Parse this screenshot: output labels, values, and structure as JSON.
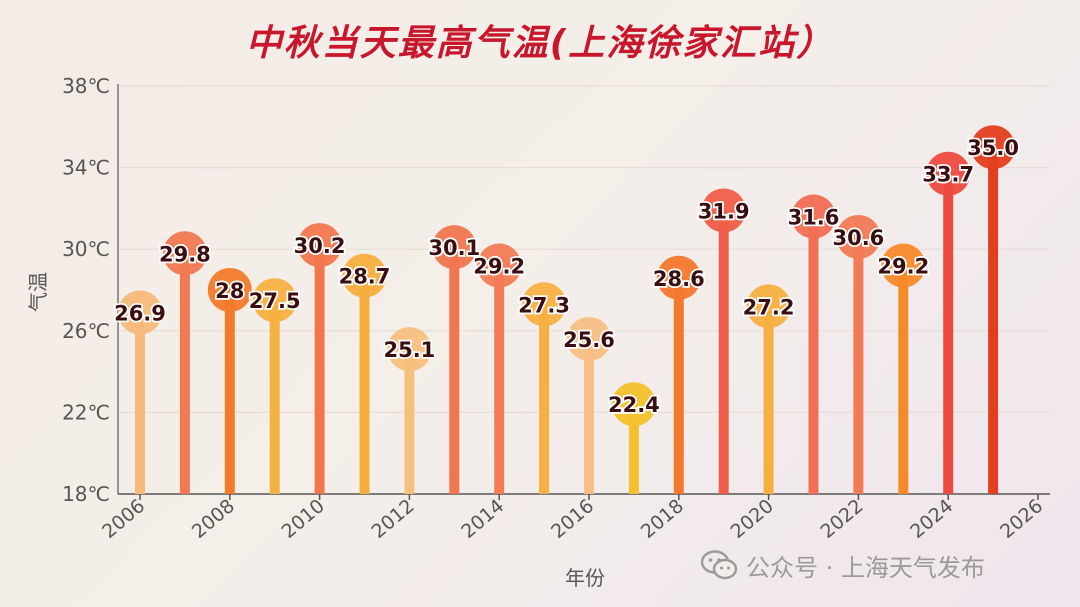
{
  "chart_data": {
    "type": "lollipop",
    "title": "中秋当天最高气温(上海徐家汇站）",
    "xlabel": "年份",
    "ylabel": "气温",
    "x": [
      2006,
      2007,
      2008,
      2009,
      2010,
      2011,
      2012,
      2013,
      2014,
      2015,
      2016,
      2017,
      2018,
      2019,
      2020,
      2021,
      2022,
      2023,
      2024,
      2025
    ],
    "values": [
      26.9,
      29.8,
      28,
      27.5,
      30.2,
      28.7,
      25.1,
      30.1,
      29.2,
      27.3,
      25.6,
      22.4,
      28.6,
      31.9,
      27.2,
      31.6,
      30.6,
      29.2,
      33.7,
      35.0
    ],
    "value_labels": [
      "26.9",
      "29.8",
      "28",
      "27.5",
      "30.2",
      "28.7",
      "25.1",
      "30.1",
      "29.2",
      "27.3",
      "25.6",
      "22.4",
      "28.6",
      "31.9",
      "27.2",
      "31.6",
      "30.6",
      "29.2",
      "33.7",
      "35.0"
    ],
    "colors": [
      "#f7b97a",
      "#f07a52",
      "#f27a2a",
      "#f5b042",
      "#f2764c",
      "#f5ad3e",
      "#f7bf7e",
      "#f07650",
      "#f27a55",
      "#f5b042",
      "#f7bf85",
      "#f4c12c",
      "#f3782e",
      "#ef5e48",
      "#f5b042",
      "#f26e55",
      "#f27a55",
      "#f58a2b",
      "#ee4a40",
      "#e1401f"
    ],
    "ylim": [
      18,
      38
    ],
    "yticks": [
      18,
      22,
      26,
      30,
      34,
      38
    ],
    "ytick_labels": [
      "18℃",
      "22℃",
      "26℃",
      "30℃",
      "34℃",
      "38℃"
    ],
    "xticks": [
      2006,
      2008,
      2010,
      2012,
      2014,
      2016,
      2018,
      2020,
      2022,
      2024,
      2026
    ],
    "xlim": [
      2006,
      2026
    ],
    "grid": true
  },
  "watermark": {
    "text": "公众号 · 上海天气发布",
    "icon": "wechat-icon"
  }
}
